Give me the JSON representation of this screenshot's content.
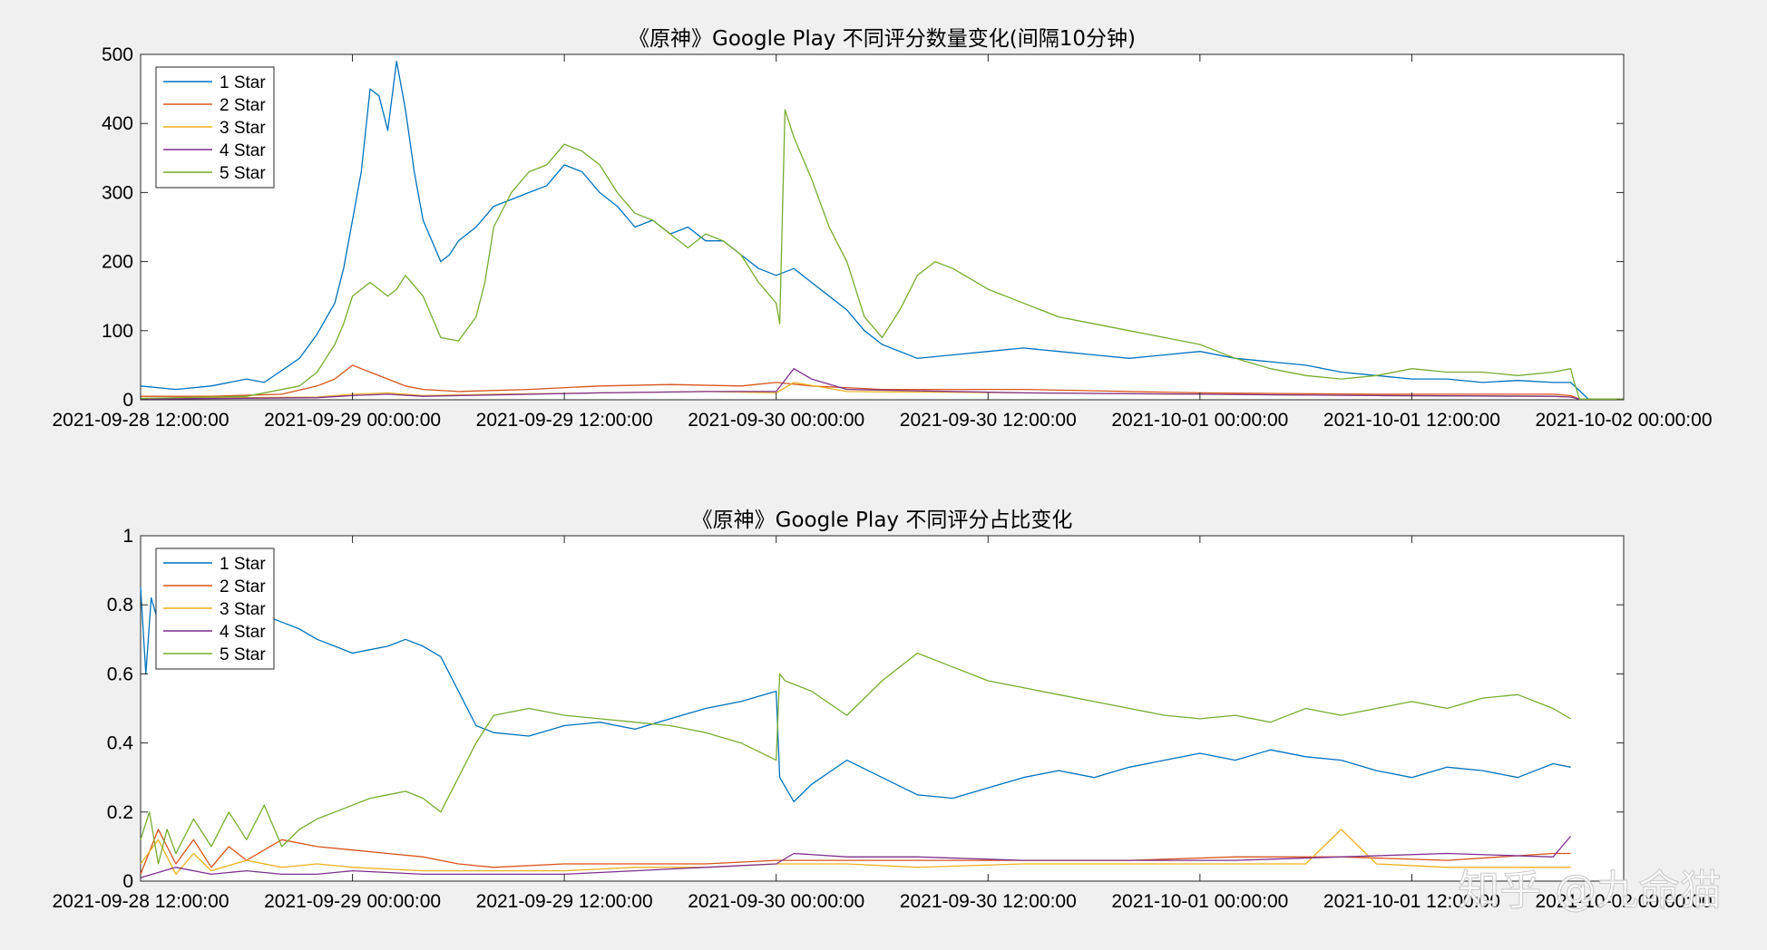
{
  "colors": {
    "background": "#f0f0f0",
    "axes_bg": "#ffffff",
    "series": [
      "#0072BD",
      "#D95319",
      "#EDB120",
      "#7E2F8E",
      "#77AC30"
    ]
  },
  "watermark": "知乎 @九命猫",
  "chart_data": [
    {
      "type": "line",
      "title": "《原神》Google Play 不同评分数量变化(间隔10分钟)",
      "xlabel": "",
      "ylabel": "",
      "x_unit": "hours since 2021-09-28 12:00:00 (x axis printed as dates)",
      "xlim": [
        0,
        84
      ],
      "ylim": [
        0,
        500
      ],
      "yticks": [
        "0",
        "100",
        "200",
        "300",
        "400",
        "500"
      ],
      "xticks": [
        "2021-09-28 12:00:00",
        "2021-09-29 00:00:00",
        "2021-09-29 12:00:00",
        "2021-09-30 00:00:00",
        "2021-09-30 12:00:00",
        "2021-10-01 00:00:00",
        "2021-10-01 12:00:00",
        "2021-10-02 00:00:00"
      ],
      "legend_position": "top-left",
      "grid": false,
      "series": [
        {
          "name": "1 Star",
          "x": [
            0,
            2,
            4,
            6,
            7,
            9,
            10,
            11,
            11.5,
            12,
            12.5,
            13,
            13.5,
            14,
            14.5,
            15,
            15.5,
            16,
            17,
            17.5,
            18,
            19,
            20,
            21,
            22,
            23,
            24,
            25,
            26,
            27,
            28,
            29,
            30,
            31,
            32,
            33,
            34,
            35,
            36,
            37,
            38,
            39,
            40,
            41,
            42,
            44,
            46,
            48,
            50,
            52,
            54,
            56,
            58,
            60,
            62,
            64,
            66,
            68,
            70,
            72,
            74,
            76,
            78,
            80,
            81,
            82,
            84
          ],
          "y": [
            20,
            15,
            20,
            30,
            25,
            60,
            95,
            140,
            190,
            260,
            330,
            450,
            440,
            390,
            490,
            420,
            330,
            260,
            200,
            210,
            230,
            250,
            280,
            290,
            300,
            310,
            340,
            330,
            300,
            280,
            250,
            260,
            240,
            250,
            230,
            230,
            210,
            190,
            180,
            190,
            170,
            150,
            130,
            100,
            80,
            60,
            65,
            70,
            75,
            70,
            65,
            60,
            65,
            70,
            60,
            55,
            50,
            40,
            35,
            30,
            30,
            25,
            28,
            25,
            25,
            1,
            1
          ]
        },
        {
          "name": "2 Star",
          "x": [
            0,
            4,
            8,
            10,
            11,
            11.5,
            12,
            12.5,
            13,
            14,
            15,
            16,
            18,
            22,
            26,
            30,
            34,
            36,
            38,
            42,
            50,
            60,
            70,
            80,
            81,
            81.5,
            84
          ],
          "y": [
            5,
            5,
            8,
            20,
            30,
            40,
            50,
            45,
            40,
            30,
            20,
            15,
            12,
            15,
            20,
            22,
            20,
            25,
            20,
            15,
            15,
            10,
            8,
            8,
            6,
            1,
            1
          ]
        },
        {
          "name": "3 Star",
          "x": [
            0,
            10,
            12,
            14,
            16,
            20,
            26,
            32,
            36,
            37,
            40,
            50,
            60,
            70,
            80,
            81,
            81.5,
            84
          ],
          "y": [
            2,
            4,
            8,
            10,
            6,
            8,
            10,
            12,
            10,
            25,
            12,
            10,
            8,
            6,
            5,
            4,
            1,
            1
          ]
        },
        {
          "name": "4 Star",
          "x": [
            0,
            10,
            12,
            14,
            16,
            20,
            26,
            32,
            36,
            37,
            38,
            40,
            50,
            60,
            70,
            80,
            81,
            81.5,
            84
          ],
          "y": [
            1,
            3,
            6,
            8,
            5,
            7,
            10,
            12,
            12,
            45,
            30,
            15,
            10,
            8,
            6,
            5,
            4,
            1,
            1
          ]
        },
        {
          "name": "5 Star",
          "x": [
            0,
            6,
            9,
            10,
            11,
            11.5,
            12,
            13,
            14,
            14.5,
            15,
            16,
            17,
            18,
            19,
            19.5,
            20,
            21,
            22,
            23,
            24,
            25,
            26,
            27,
            28,
            29,
            30,
            31,
            32,
            33,
            34,
            35,
            36,
            36.2,
            36.5,
            37,
            38,
            39,
            40,
            41,
            42,
            43,
            44,
            45,
            46,
            47,
            48,
            50,
            52,
            54,
            56,
            58,
            60,
            62,
            64,
            66,
            68,
            70,
            72,
            74,
            76,
            78,
            80,
            81,
            81.2,
            81.5,
            84
          ],
          "y": [
            2,
            5,
            20,
            40,
            80,
            110,
            150,
            170,
            150,
            160,
            180,
            150,
            90,
            85,
            120,
            170,
            250,
            300,
            330,
            340,
            370,
            360,
            340,
            300,
            270,
            260,
            240,
            220,
            240,
            230,
            210,
            170,
            140,
            110,
            420,
            380,
            320,
            250,
            200,
            120,
            90,
            130,
            180,
            200,
            190,
            175,
            160,
            140,
            120,
            110,
            100,
            90,
            80,
            60,
            45,
            35,
            30,
            35,
            45,
            40,
            40,
            35,
            40,
            45,
            25,
            1,
            1
          ]
        }
      ]
    },
    {
      "type": "line",
      "title": "《原神》Google Play 不同评分占比变化",
      "xlabel": "",
      "ylabel": "",
      "x_unit": "hours since 2021-09-28 12:00:00 (x axis printed as dates)",
      "xlim": [
        0,
        84
      ],
      "ylim": [
        0,
        1
      ],
      "yticks": [
        "0",
        "0.2",
        "0.4",
        "0.6",
        "0.8",
        "1"
      ],
      "xticks": [
        "2021-09-28 12:00:00",
        "2021-09-29 00:00:00",
        "2021-09-29 12:00:00",
        "2021-09-30 00:00:00",
        "2021-09-30 12:00:00",
        "2021-10-01 00:00:00",
        "2021-10-01 12:00:00",
        "2021-10-02 00:00:00"
      ],
      "legend_position": "top-left",
      "grid": false,
      "series": [
        {
          "name": "1 Star",
          "x": [
            0,
            0.3,
            0.6,
            1,
            1.5,
            2,
            3,
            4,
            5,
            6,
            7,
            8,
            9,
            10,
            11,
            12,
            13,
            14,
            15,
            16,
            17,
            18,
            19,
            20,
            22,
            24,
            26,
            28,
            30,
            32,
            34,
            36,
            36.2,
            37,
            38,
            40,
            42,
            44,
            46,
            48,
            50,
            52,
            54,
            56,
            58,
            60,
            62,
            64,
            66,
            68,
            70,
            72,
            74,
            76,
            78,
            80,
            81
          ],
          "y": [
            0.85,
            0.6,
            0.82,
            0.75,
            0.85,
            0.78,
            0.8,
            0.7,
            0.72,
            0.8,
            0.77,
            0.75,
            0.73,
            0.7,
            0.68,
            0.66,
            0.67,
            0.68,
            0.7,
            0.68,
            0.65,
            0.55,
            0.45,
            0.43,
            0.42,
            0.45,
            0.46,
            0.44,
            0.47,
            0.5,
            0.52,
            0.55,
            0.3,
            0.23,
            0.28,
            0.35,
            0.3,
            0.25,
            0.24,
            0.27,
            0.3,
            0.32,
            0.3,
            0.33,
            0.35,
            0.37,
            0.35,
            0.38,
            0.36,
            0.35,
            0.32,
            0.3,
            0.33,
            0.32,
            0.3,
            0.34,
            0.33
          ]
        },
        {
          "name": "2 Star",
          "x": [
            0,
            1,
            2,
            3,
            4,
            5,
            6,
            8,
            10,
            12,
            14,
            16,
            18,
            20,
            24,
            28,
            32,
            36,
            40,
            44,
            50,
            56,
            62,
            68,
            74,
            80,
            81
          ],
          "y": [
            0.02,
            0.15,
            0.05,
            0.12,
            0.04,
            0.1,
            0.06,
            0.12,
            0.1,
            0.09,
            0.08,
            0.07,
            0.05,
            0.04,
            0.05,
            0.05,
            0.05,
            0.06,
            0.06,
            0.06,
            0.06,
            0.06,
            0.07,
            0.07,
            0.06,
            0.08,
            0.08
          ]
        },
        {
          "name": "3 Star",
          "x": [
            0,
            1,
            2,
            3,
            4,
            6,
            8,
            10,
            12,
            16,
            20,
            24,
            28,
            32,
            36,
            40,
            44,
            50,
            56,
            62,
            66,
            68,
            70,
            74,
            80,
            81
          ],
          "y": [
            0.05,
            0.12,
            0.02,
            0.08,
            0.03,
            0.06,
            0.04,
            0.05,
            0.04,
            0.03,
            0.03,
            0.03,
            0.04,
            0.04,
            0.05,
            0.05,
            0.04,
            0.05,
            0.05,
            0.05,
            0.05,
            0.15,
            0.05,
            0.04,
            0.04,
            0.04
          ]
        },
        {
          "name": "4 Star",
          "x": [
            0,
            2,
            4,
            6,
            8,
            10,
            12,
            16,
            20,
            24,
            28,
            32,
            36,
            37,
            40,
            44,
            50,
            56,
            62,
            68,
            74,
            80,
            81
          ],
          "y": [
            0.01,
            0.04,
            0.02,
            0.03,
            0.02,
            0.02,
            0.03,
            0.02,
            0.02,
            0.02,
            0.03,
            0.04,
            0.05,
            0.08,
            0.07,
            0.07,
            0.06,
            0.06,
            0.06,
            0.07,
            0.08,
            0.07,
            0.13
          ]
        },
        {
          "name": "5 Star",
          "x": [
            0,
            0.5,
            1,
            1.5,
            2,
            3,
            4,
            5,
            6,
            7,
            8,
            9,
            10,
            11,
            12,
            13,
            14,
            15,
            16,
            17,
            18,
            19,
            20,
            22,
            24,
            26,
            28,
            30,
            32,
            34,
            36,
            36.2,
            36.5,
            38,
            40,
            42,
            44,
            46,
            48,
            50,
            52,
            54,
            56,
            58,
            60,
            62,
            64,
            66,
            68,
            70,
            72,
            74,
            76,
            78,
            80,
            81
          ],
          "y": [
            0.12,
            0.2,
            0.05,
            0.15,
            0.08,
            0.18,
            0.1,
            0.2,
            0.12,
            0.22,
            0.1,
            0.15,
            0.18,
            0.2,
            0.22,
            0.24,
            0.25,
            0.26,
            0.24,
            0.2,
            0.3,
            0.4,
            0.48,
            0.5,
            0.48,
            0.47,
            0.46,
            0.45,
            0.43,
            0.4,
            0.35,
            0.6,
            0.58,
            0.55,
            0.48,
            0.58,
            0.66,
            0.62,
            0.58,
            0.56,
            0.54,
            0.52,
            0.5,
            0.48,
            0.47,
            0.48,
            0.46,
            0.5,
            0.48,
            0.5,
            0.52,
            0.5,
            0.53,
            0.54,
            0.5,
            0.47
          ]
        }
      ]
    }
  ]
}
